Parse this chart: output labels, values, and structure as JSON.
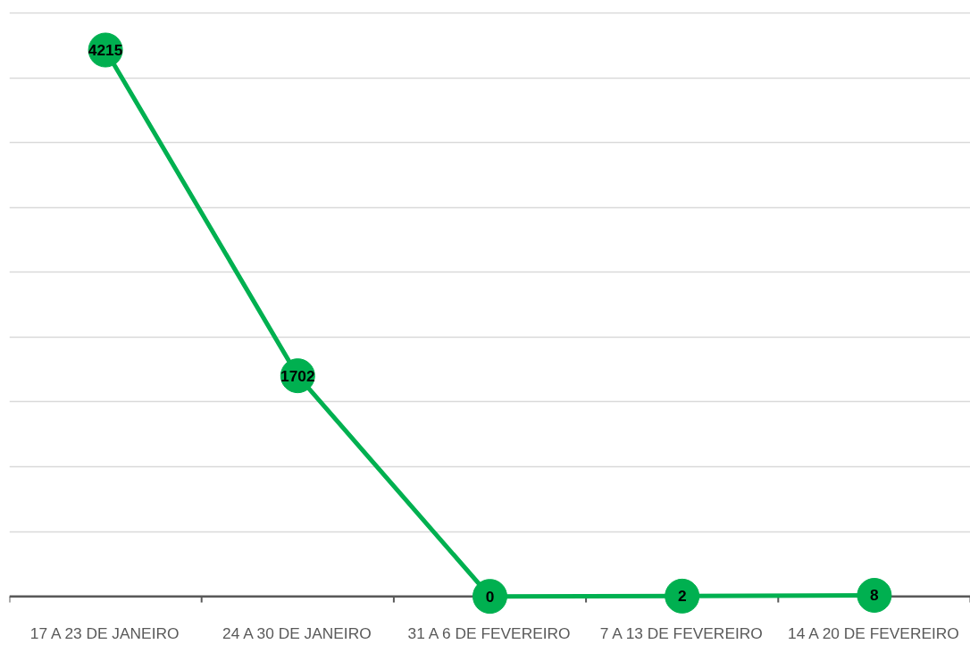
{
  "chart_data": {
    "type": "line",
    "categories": [
      "17 A 23 DE JANEIRO",
      "24 A 30 DE JANEIRO",
      "31 A 6 DE FEVEREIRO",
      "7 A 13 DE FEVEREIRO",
      "14 A 20 DE FEVEREIRO"
    ],
    "series": [
      {
        "color": "#00b050",
        "values": [
          4215,
          1702,
          0,
          2,
          8
        ]
      }
    ],
    "yticks": [
      {
        "value": 0,
        "label": null
      },
      {
        "value": 500,
        "label": null
      },
      {
        "value": 1000,
        "label": null
      },
      {
        "value": 1500,
        "label": null
      },
      {
        "value": 2000,
        "label": null
      },
      {
        "value": 2500,
        "label": null
      },
      {
        "value": 3000,
        "label": null
      },
      {
        "value": 3500,
        "label": null
      },
      {
        "value": 4000,
        "label": null
      },
      {
        "value": 4500,
        "label": null
      }
    ],
    "grid": "y",
    "tick_labels": "x",
    "data_labels": true,
    "marker": "circle",
    "line_style": "solid"
  }
}
